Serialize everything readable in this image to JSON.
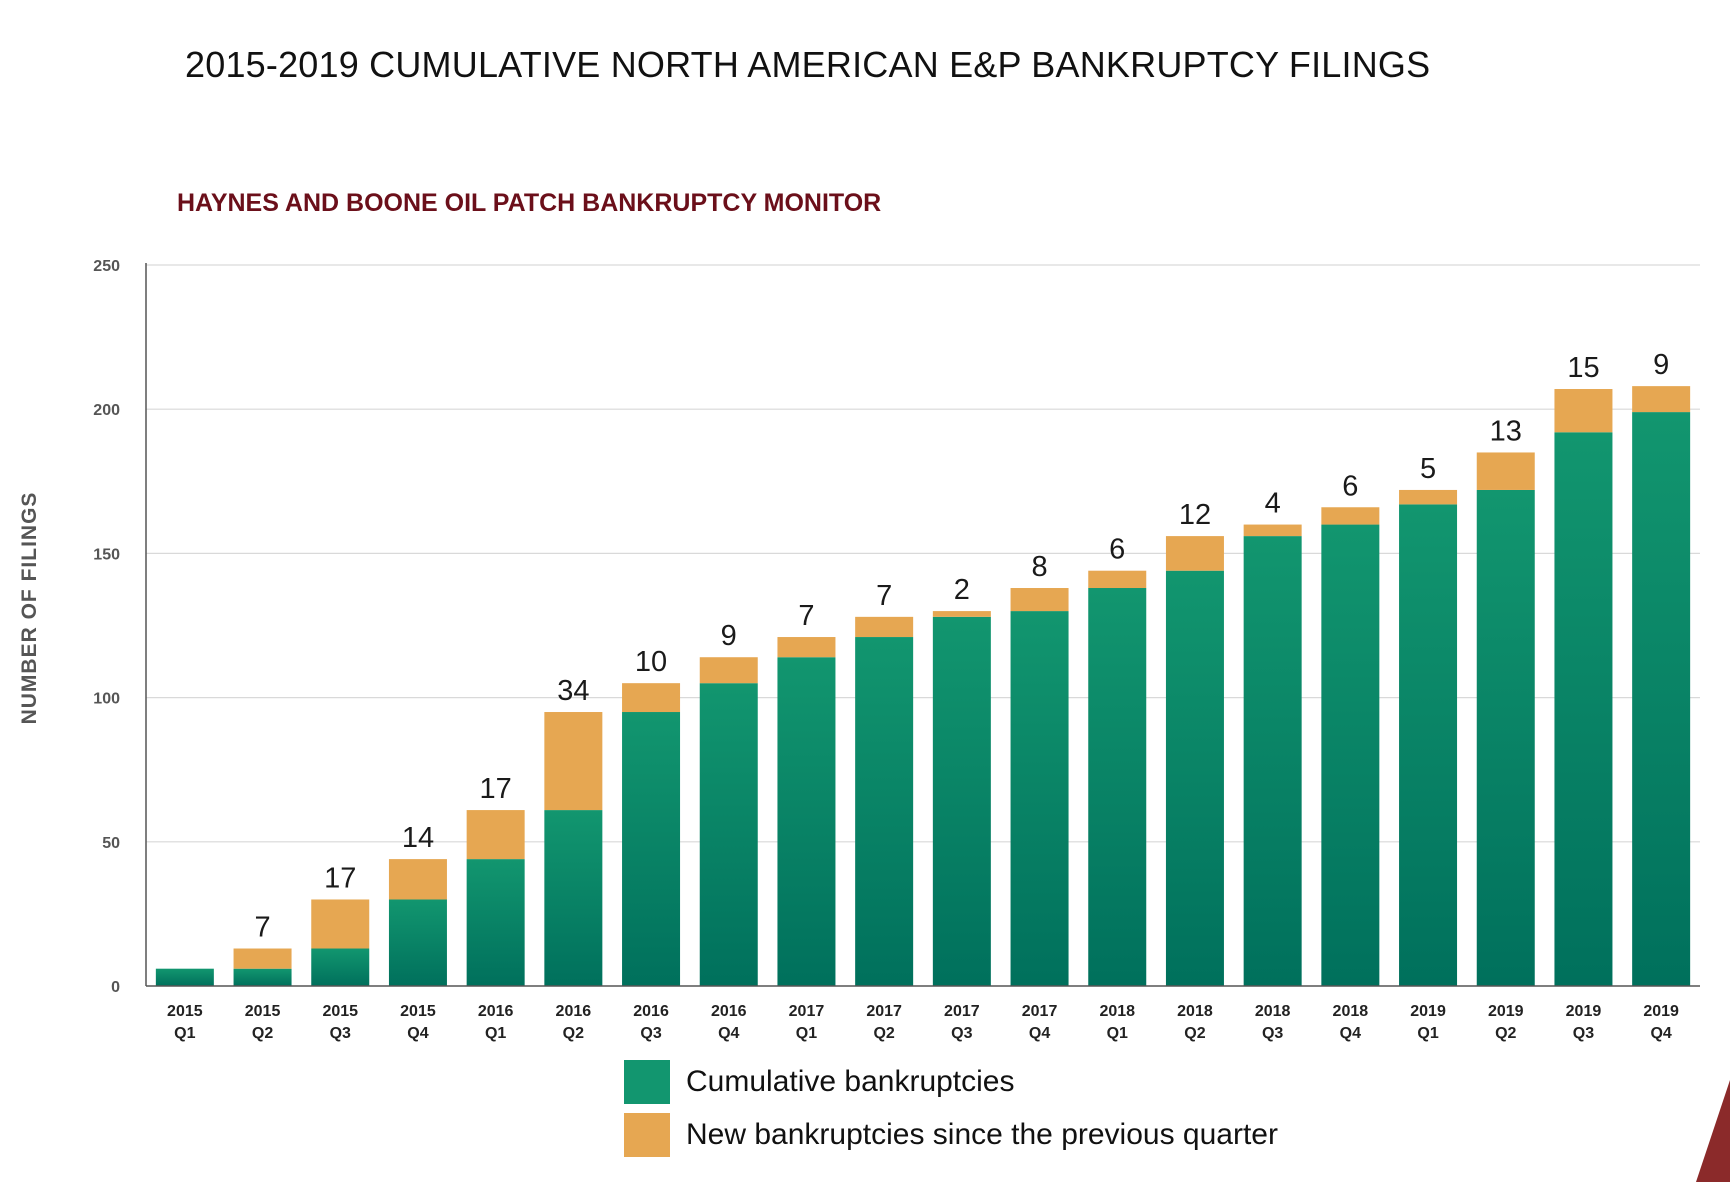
{
  "title": "2015-2019 CUMULATIVE NORTH AMERICAN E&P BANKRUPTCY FILINGS",
  "subtitle": "HAYNES AND BOONE OIL PATCH BANKRUPTCY MONITOR",
  "colors": {
    "cumulative_top": "#12966f",
    "cumulative_bottom": "#00705c",
    "new": "#e6a752",
    "subtitle": "#6b0f1a",
    "corner_accent": "#8b2a2a"
  },
  "chart_data": {
    "type": "bar",
    "stacked": true,
    "categories": [
      "2015 Q1",
      "2015 Q2",
      "2015 Q3",
      "2015 Q4",
      "2016 Q1",
      "2016 Q2",
      "2016 Q3",
      "2016 Q4",
      "2017 Q1",
      "2017 Q2",
      "2017 Q3",
      "2017 Q4",
      "2018 Q1",
      "2018 Q2",
      "2018 Q3",
      "2018 Q4",
      "2019 Q1",
      "2019 Q2",
      "2019 Q3",
      "2019 Q4"
    ],
    "category_lines": [
      [
        "2015",
        "Q1"
      ],
      [
        "2015",
        "Q2"
      ],
      [
        "2015",
        "Q3"
      ],
      [
        "2015",
        "Q4"
      ],
      [
        "2016",
        "Q1"
      ],
      [
        "2016",
        "Q2"
      ],
      [
        "2016",
        "Q3"
      ],
      [
        "2016",
        "Q4"
      ],
      [
        "2017",
        "Q1"
      ],
      [
        "2017",
        "Q2"
      ],
      [
        "2017",
        "Q3"
      ],
      [
        "2017",
        "Q4"
      ],
      [
        "2018",
        "Q1"
      ],
      [
        "2018",
        "Q2"
      ],
      [
        "2018",
        "Q3"
      ],
      [
        "2018",
        "Q4"
      ],
      [
        "2019",
        "Q1"
      ],
      [
        "2019",
        "Q2"
      ],
      [
        "2019",
        "Q3"
      ],
      [
        "2019",
        "Q4"
      ]
    ],
    "series": [
      {
        "name": "Cumulative bankruptcies",
        "values": [
          6,
          6,
          13,
          30,
          44,
          61,
          95,
          105,
          114,
          121,
          128,
          130,
          138,
          144,
          156,
          160,
          167,
          172,
          192,
          199
        ]
      },
      {
        "name": "New bankruptcies since the previous quarter",
        "values": [
          0,
          7,
          17,
          14,
          17,
          34,
          10,
          9,
          7,
          7,
          2,
          8,
          6,
          12,
          4,
          6,
          5,
          13,
          15,
          9
        ]
      }
    ],
    "data_labels": [
      "",
      "7",
      "17",
      "14",
      "17",
      "34",
      "10",
      "9",
      "7",
      "7",
      "2",
      "8",
      "6",
      "12",
      "4",
      "6",
      "5",
      "13",
      "15",
      "9"
    ],
    "ylabel": "NUMBER OF FILINGS",
    "ylim": [
      0,
      250
    ],
    "yticks": [
      0,
      50,
      100,
      150,
      200,
      250
    ],
    "grid": true,
    "legend_position": "bottom-center"
  }
}
